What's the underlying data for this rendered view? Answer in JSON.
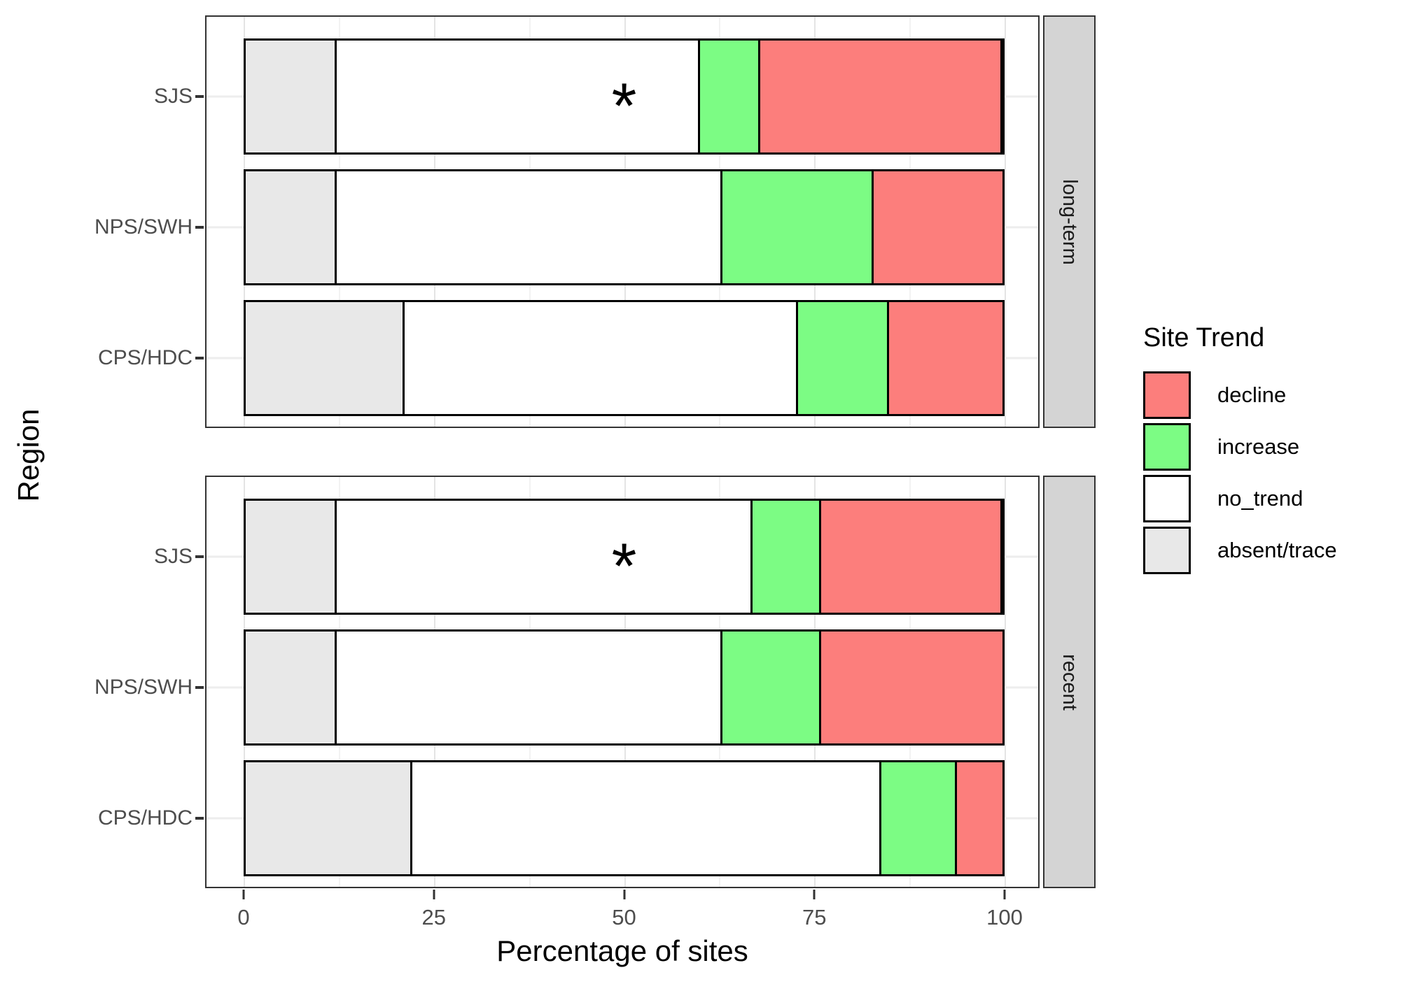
{
  "legend": {
    "title": "Site Trend",
    "items": [
      {
        "label": "decline",
        "color": "#FC7E7C"
      },
      {
        "label": "increase",
        "color": "#7CFC84"
      },
      {
        "label": "no_trend",
        "color": "#FFFFFF"
      },
      {
        "label": "absent/trace",
        "color": "#E8E8E8"
      }
    ]
  },
  "chart_data": {
    "type": "bar",
    "orientation": "horizontal",
    "stacked": true,
    "title": "",
    "xlabel": "Percentage of sites",
    "ylabel": "Region",
    "xlim": [
      0,
      100
    ],
    "x_ticks": [
      0,
      25,
      50,
      75,
      100
    ],
    "x_tick_labels": [
      "0",
      "25",
      "50",
      "75",
      "100"
    ],
    "gridlines": {
      "major": [
        0,
        25,
        50,
        75,
        100
      ],
      "minor": [
        12.5,
        37.5,
        62.5,
        87.5
      ]
    },
    "legend_title": "Site Trend",
    "legend_position": "right",
    "segment_order": [
      "absent/trace",
      "no_trend",
      "increase",
      "decline"
    ],
    "colors": {
      "decline": "#FC7E7C",
      "increase": "#7CFC84",
      "no_trend": "#FFFFFF",
      "absent/trace": "#E8E8E8"
    },
    "facets": [
      {
        "label": "long-term",
        "rows": [
          {
            "category": "SJS",
            "annotation": "*",
            "segments": [
              {
                "trend": "absent/trace",
                "value": 12
              },
              {
                "trend": "no_trend",
                "value": 48
              },
              {
                "trend": "increase",
                "value": 8
              },
              {
                "trend": "decline",
                "value": 32
              }
            ]
          },
          {
            "category": "NPS/SWH",
            "annotation": "",
            "segments": [
              {
                "trend": "absent/trace",
                "value": 12
              },
              {
                "trend": "no_trend",
                "value": 51
              },
              {
                "trend": "increase",
                "value": 20
              },
              {
                "trend": "decline",
                "value": 17
              }
            ]
          },
          {
            "category": "CPS/HDC",
            "annotation": "",
            "segments": [
              {
                "trend": "absent/trace",
                "value": 21
              },
              {
                "trend": "no_trend",
                "value": 52
              },
              {
                "trend": "increase",
                "value": 12
              },
              {
                "trend": "decline",
                "value": 15
              }
            ]
          }
        ]
      },
      {
        "label": "recent",
        "rows": [
          {
            "category": "SJS",
            "annotation": "*",
            "segments": [
              {
                "trend": "absent/trace",
                "value": 12
              },
              {
                "trend": "no_trend",
                "value": 55
              },
              {
                "trend": "increase",
                "value": 9
              },
              {
                "trend": "decline",
                "value": 24
              }
            ]
          },
          {
            "category": "NPS/SWH",
            "annotation": "",
            "segments": [
              {
                "trend": "absent/trace",
                "value": 12
              },
              {
                "trend": "no_trend",
                "value": 51
              },
              {
                "trend": "increase",
                "value": 13
              },
              {
                "trend": "decline",
                "value": 24
              }
            ]
          },
          {
            "category": "CPS/HDC",
            "annotation": "",
            "segments": [
              {
                "trend": "absent/trace",
                "value": 22
              },
              {
                "trend": "no_trend",
                "value": 62
              },
              {
                "trend": "increase",
                "value": 10
              },
              {
                "trend": "decline",
                "value": 6
              }
            ]
          }
        ]
      }
    ]
  }
}
